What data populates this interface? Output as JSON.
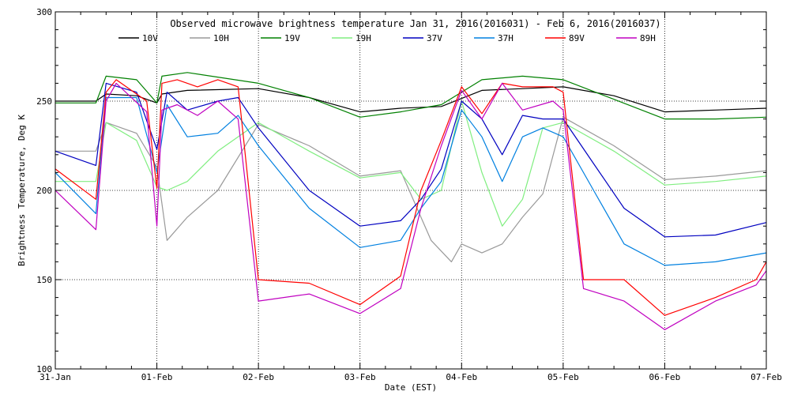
{
  "chart_data": {
    "type": "line",
    "title": "Observed microwave brightness temperature Jan 31, 2016(2016031) - Feb  6, 2016(2016037)",
    "xlabel": "Date (EST)",
    "ylabel": "Brightness Temperature, Deg K",
    "xlim": [
      0,
      7
    ],
    "ylim": [
      100,
      300
    ],
    "x_ticks": [
      0,
      1,
      2,
      3,
      4,
      5,
      6,
      7
    ],
    "x_tick_labels": [
      "31-Jan",
      "01-Feb",
      "02-Feb",
      "03-Feb",
      "04-Feb",
      "05-Feb",
      "06-Feb",
      "07-Feb"
    ],
    "y_ticks": [
      100,
      150,
      200,
      250,
      300
    ],
    "y_tick_labels": [
      "100",
      "150",
      "200",
      "250",
      "300"
    ],
    "grid": "dotted",
    "legend_position": "top",
    "series": [
      {
        "name": "10V",
        "color": "#000000",
        "x": [
          0,
          0.4,
          0.5,
          0.8,
          1.0,
          1.05,
          1.3,
          2.0,
          2.5,
          3.0,
          3.4,
          3.8,
          4.2,
          4.6,
          5.0,
          5.5,
          6.0,
          6.5,
          7.0
        ],
        "y": [
          250,
          250,
          254,
          253,
          249,
          254,
          256,
          257,
          252,
          244,
          246,
          247,
          256,
          257,
          258,
          253,
          244,
          245,
          246
        ]
      },
      {
        "name": "10H",
        "color": "#999999",
        "x": [
          0,
          0.4,
          0.5,
          0.8,
          1.0,
          1.1,
          1.3,
          1.6,
          2.0,
          2.5,
          3.0,
          3.4,
          3.7,
          3.9,
          4.0,
          4.2,
          4.4,
          4.6,
          4.8,
          5.0,
          5.5,
          6.0,
          6.5,
          7.0
        ],
        "y": [
          222,
          222,
          238,
          232,
          213,
          172,
          185,
          200,
          237,
          225,
          208,
          211,
          172,
          160,
          170,
          165,
          170,
          185,
          198,
          241,
          225,
          206,
          208,
          211
        ]
      },
      {
        "name": "19V",
        "color": "#008000",
        "x": [
          0,
          0.4,
          0.5,
          0.8,
          1.0,
          1.05,
          1.3,
          2.0,
          2.5,
          3.0,
          3.4,
          3.8,
          4.2,
          4.6,
          5.0,
          5.5,
          6.0,
          6.5,
          7.0
        ],
        "y": [
          249,
          249,
          264,
          262,
          249,
          264,
          266,
          260,
          252,
          241,
          244,
          248,
          262,
          264,
          262,
          251,
          240,
          240,
          241
        ]
      },
      {
        "name": "19H",
        "color": "#80ee80",
        "x": [
          0,
          0.4,
          0.5,
          0.8,
          1.0,
          1.1,
          1.3,
          1.6,
          2.0,
          2.5,
          3.0,
          3.4,
          3.6,
          3.8,
          4.0,
          4.2,
          4.4,
          4.6,
          4.8,
          5.0,
          5.5,
          6.0,
          6.5,
          7.0
        ],
        "y": [
          205,
          205,
          238,
          228,
          202,
          200,
          205,
          222,
          238,
          222,
          207,
          210,
          195,
          200,
          250,
          210,
          180,
          195,
          235,
          238,
          222,
          203,
          205,
          208
        ]
      },
      {
        "name": "37V",
        "color": "#0000c0",
        "x": [
          0,
          0.4,
          0.5,
          0.8,
          1.0,
          1.1,
          1.3,
          1.6,
          1.8,
          2.0,
          2.5,
          3.0,
          3.4,
          3.6,
          3.8,
          4.0,
          4.2,
          4.4,
          4.6,
          4.8,
          5.0,
          5.3,
          5.6,
          6.0,
          6.5,
          7.0
        ],
        "y": [
          222,
          214,
          260,
          255,
          223,
          255,
          245,
          250,
          252,
          235,
          200,
          180,
          183,
          195,
          212,
          250,
          240,
          220,
          242,
          240,
          240,
          215,
          190,
          174,
          175,
          182
        ]
      },
      {
        "name": "37H",
        "color": "#0080e0",
        "x": [
          0,
          0.4,
          0.5,
          0.8,
          1.0,
          1.1,
          1.3,
          1.6,
          1.8,
          2.0,
          2.5,
          3.0,
          3.4,
          3.6,
          3.8,
          4.0,
          4.2,
          4.4,
          4.6,
          4.8,
          5.0,
          5.3,
          5.6,
          6.0,
          6.5,
          7.0
        ],
        "y": [
          210,
          187,
          252,
          252,
          210,
          248,
          230,
          232,
          242,
          225,
          190,
          168,
          172,
          190,
          205,
          245,
          230,
          205,
          230,
          235,
          230,
          200,
          170,
          158,
          160,
          165
        ]
      },
      {
        "name": "89V",
        "color": "#ff0000",
        "x": [
          0,
          0.4,
          0.5,
          0.6,
          0.9,
          1.0,
          1.05,
          1.2,
          1.4,
          1.6,
          1.8,
          2.0,
          2.5,
          3.0,
          3.4,
          3.6,
          3.8,
          4.0,
          4.2,
          4.4,
          4.6,
          4.9,
          5.0,
          5.2,
          5.6,
          6.0,
          6.5,
          6.9,
          7.0
        ],
        "y": [
          212,
          195,
          255,
          262,
          250,
          201,
          260,
          262,
          258,
          262,
          258,
          150,
          148,
          136,
          152,
          200,
          228,
          258,
          243,
          260,
          258,
          258,
          255,
          150,
          150,
          130,
          140,
          150,
          160
        ]
      },
      {
        "name": "89H",
        "color": "#c000c0",
        "x": [
          0,
          0.4,
          0.5,
          0.6,
          0.9,
          1.0,
          1.05,
          1.2,
          1.4,
          1.6,
          1.8,
          2.0,
          2.5,
          3.0,
          3.4,
          3.6,
          3.8,
          4.0,
          4.2,
          4.4,
          4.6,
          4.9,
          5.0,
          5.2,
          5.6,
          6.0,
          6.5,
          6.9,
          7.0
        ],
        "y": [
          200,
          178,
          250,
          260,
          244,
          180,
          245,
          248,
          242,
          250,
          240,
          138,
          142,
          131,
          145,
          190,
          225,
          256,
          240,
          260,
          245,
          250,
          245,
          145,
          138,
          122,
          138,
          147,
          155
        ]
      }
    ]
  }
}
